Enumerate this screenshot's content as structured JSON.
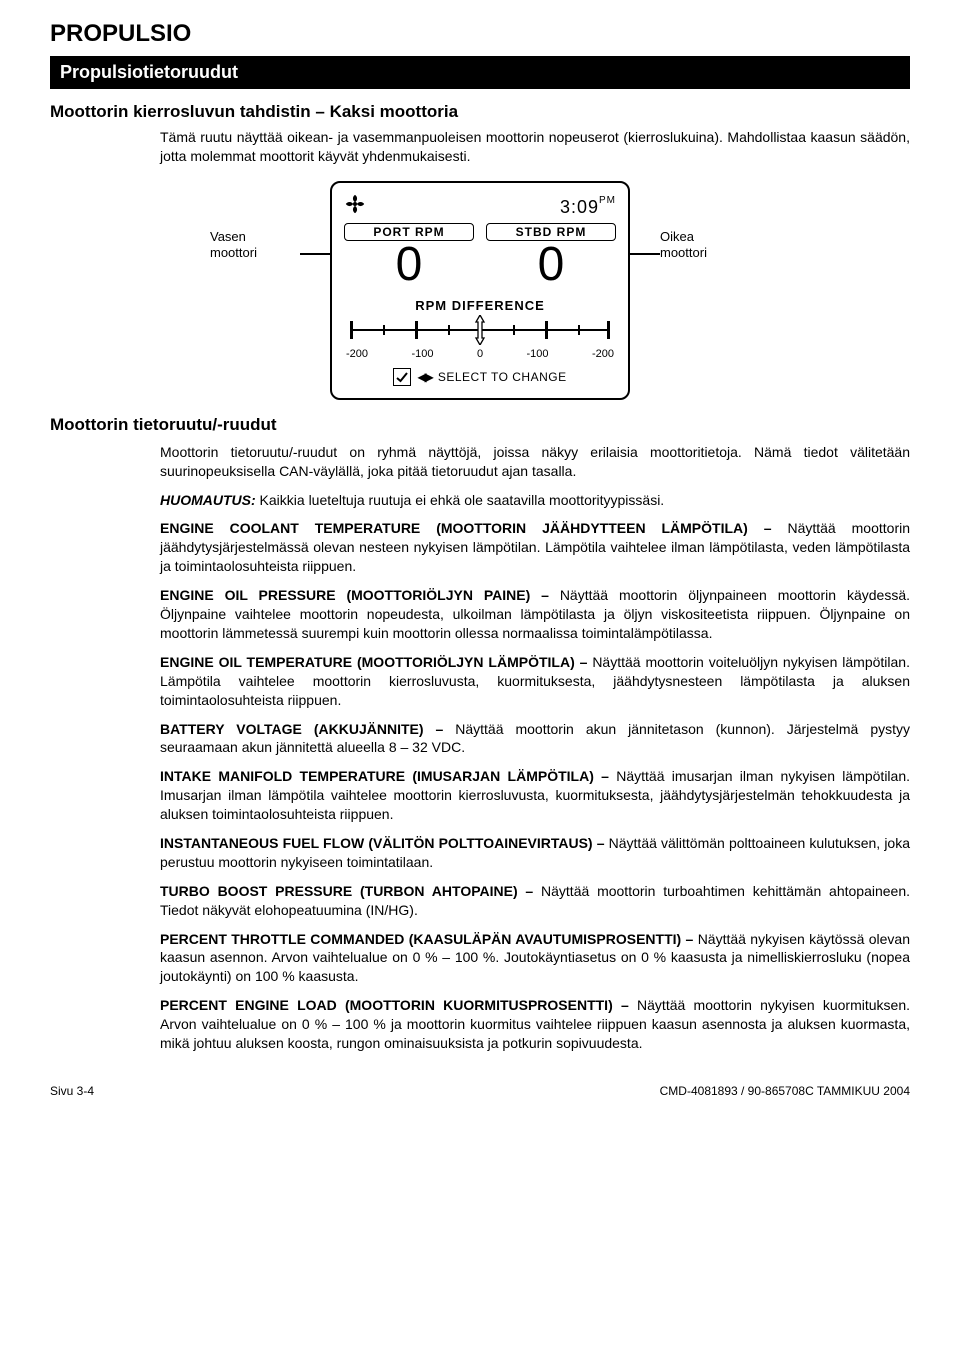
{
  "header": {
    "section_title": "PROPULSIO",
    "subsection": "Propulsiotietoruudut",
    "sub_heading": "Moottorin kierrosluvun tahdistin – Kaksi moottoria",
    "intro": "Tämä ruutu näyttää oikean- ja vasemmanpuoleisen moottorin nopeuserot (kierroslukuina). Mahdollistaa kaasun säädön, jotta molemmat moottorit käyvät yhdenmukaisesti."
  },
  "diagram": {
    "left_label_1": "Vasen",
    "left_label_2": "moottori",
    "right_label_1": "Oikea",
    "right_label_2": "moottori",
    "clock_time": "3:09",
    "clock_ampm": "PM",
    "port_label": "PORT RPM",
    "stbd_label": "STBD RPM",
    "port_value": "0",
    "stbd_value": "0",
    "diff_label": "RPM DIFFERENCE",
    "scale": {
      "ticks": [
        "-200",
        "-100",
        "0",
        "-100",
        "-200"
      ]
    },
    "select_text": "SELECT TO CHANGE"
  },
  "mid_heading": "Moottorin tietoruutu/-ruudut",
  "paragraphs": {
    "p0": "Moottorin tietoruutu/-ruudut on ryhmä näyttöjä, joissa näkyy erilaisia moottoritietoja. Nämä tiedot välitetään suurinopeuksisella CAN-väylällä, joka pitää tietoruudut ajan tasalla.",
    "note_label": "HUOMAUTUS:",
    "note_text": " Kaikkia lueteltuja ruutuja ei ehkä ole saatavilla moottorityypissäsi.",
    "items": [
      {
        "lead": "ENGINE COOLANT TEMPERATURE (MOOTTORIN JÄÄHDYTTEEN LÄMPÖTILA) –",
        "text": " Näyttää moottorin jäähdytysjärjestelmässä olevan nesteen nykyisen lämpötilan. Lämpötila vaihtelee ilman lämpötilasta, veden lämpötilasta ja toimintaolosuhteista riippuen."
      },
      {
        "lead": "ENGINE OIL PRESSURE (MOOTTORIÖLJYN PAINE) –",
        "text": " Näyttää moottorin öljynpaineen moottorin käydessä. Öljynpaine vaihtelee moottorin nopeudesta, ulkoilman lämpötilasta ja öljyn viskositeetista riippuen. Öljynpaine on moottorin lämmetessä suurempi kuin moottorin ollessa normaalissa toimintalämpötilassa."
      },
      {
        "lead": "ENGINE OIL TEMPERATURE (MOOTTORIÖLJYN LÄMPÖTILA) –",
        "text": " Näyttää moottorin voiteluöljyn nykyisen lämpötilan. Lämpötila vaihtelee moottorin kierrosluvusta, kuormituksesta, jäähdytysnesteen lämpötilasta ja aluksen toimintaolosuhteista riippuen."
      },
      {
        "lead": "BATTERY VOLTAGE (AKKUJÄNNITE) –",
        "text": " Näyttää moottorin akun jännitetason (kunnon). Järjestelmä pystyy seuraamaan akun jännitettä alueella 8 – 32 VDC."
      },
      {
        "lead": "INTAKE MANIFOLD TEMPERATURE (IMUSARJAN LÄMPÖTILA) –",
        "text": " Näyttää imusarjan ilman nykyisen lämpötilan. Imusarjan ilman lämpötila vaihtelee moottorin kierrosluvusta, kuormituksesta, jäähdytysjärjestelmän tehokkuudesta ja aluksen toimintaolosuhteista riippuen."
      },
      {
        "lead": "INSTANTANEOUS FUEL FLOW (VÄLITÖN POLTTOAINEVIRTAUS) –",
        "text": " Näyttää välittömän polttoaineen kulutuksen, joka perustuu moottorin nykyiseen toimintatilaan."
      },
      {
        "lead": "TURBO BOOST PRESSURE (TURBON AHTOPAINE) –",
        "text": " Näyttää moottorin turboahtimen kehittämän ahtopaineen. Tiedot näkyvät elohopeatuumina (IN/HG)."
      },
      {
        "lead": "PERCENT THROTTLE COMMANDED (KAASULÄPÄN AVAUTUMISPROSENTTI) –",
        "text": " Näyttää nykyisen käytössä olevan kaasun asennon. Arvon vaihtelualue on 0 % – 100 %. Joutokäyntiasetus on 0 % kaasusta ja nimelliskierrosluku (nopea joutokäynti) on 100 % kaasusta."
      },
      {
        "lead": "PERCENT ENGINE LOAD (MOOTTORIN KUORMITUSPROSENTTI) –",
        "text": " Näyttää moottorin nykyisen kuormituksen. Arvon vaihtelualue on 0 % – 100 % ja moottorin kuormitus vaihtelee riippuen kaasun asennosta ja aluksen kuormasta, mikä johtuu aluksen koosta, rungon ominaisuuksista ja potkurin sopivuudesta."
      }
    ]
  },
  "footer": {
    "left": "Sivu 3-4",
    "right": "CMD-4081893 / 90-865708C TAMMIKUU 2004"
  },
  "colors": {
    "bg": "#ffffff",
    "text": "#000000",
    "bar_bg": "#000000",
    "bar_text": "#ffffff"
  }
}
